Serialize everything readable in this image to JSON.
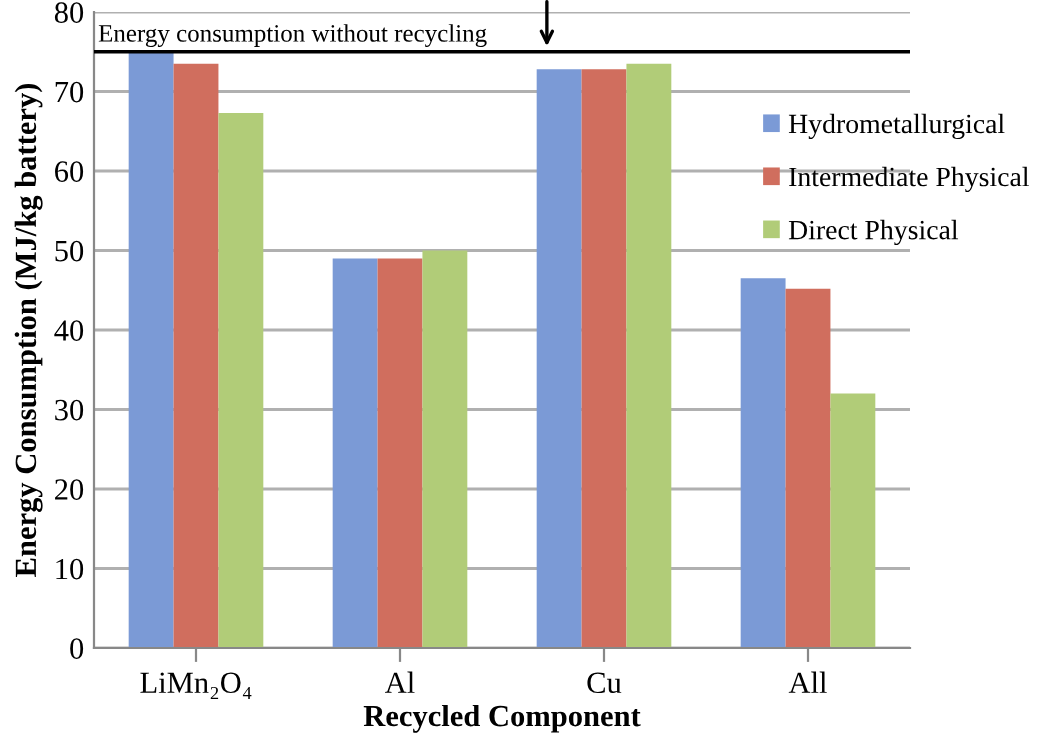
{
  "chart_data": {
    "type": "bar",
    "xlabel": "Recycled Component",
    "ylabel": "Energy Consumption (MJ/kg battery)",
    "categories": [
      "LiMn₂O₄",
      "Al",
      "Cu",
      "All"
    ],
    "series": [
      {
        "name": "Hydrometallurgical",
        "color": "#7b9ad6",
        "values": [
          75,
          49,
          72.8,
          46.5
        ]
      },
      {
        "name": "Intermediate Physical",
        "color": "#d06e5e",
        "values": [
          73.5,
          49,
          72.8,
          45.2
        ]
      },
      {
        "name": "Direct Physical",
        "color": "#b1cc78",
        "values": [
          67.3,
          50,
          73.5,
          32
        ]
      }
    ],
    "ylim": [
      0,
      80
    ],
    "yticks": [
      0,
      10,
      20,
      30,
      40,
      50,
      60,
      70,
      80
    ],
    "grid": "y",
    "legend": "right",
    "ref_lines": [
      {
        "axis": "y",
        "value": 75,
        "label": "Energy consumption without recycling",
        "color": "#000000"
      }
    ]
  }
}
